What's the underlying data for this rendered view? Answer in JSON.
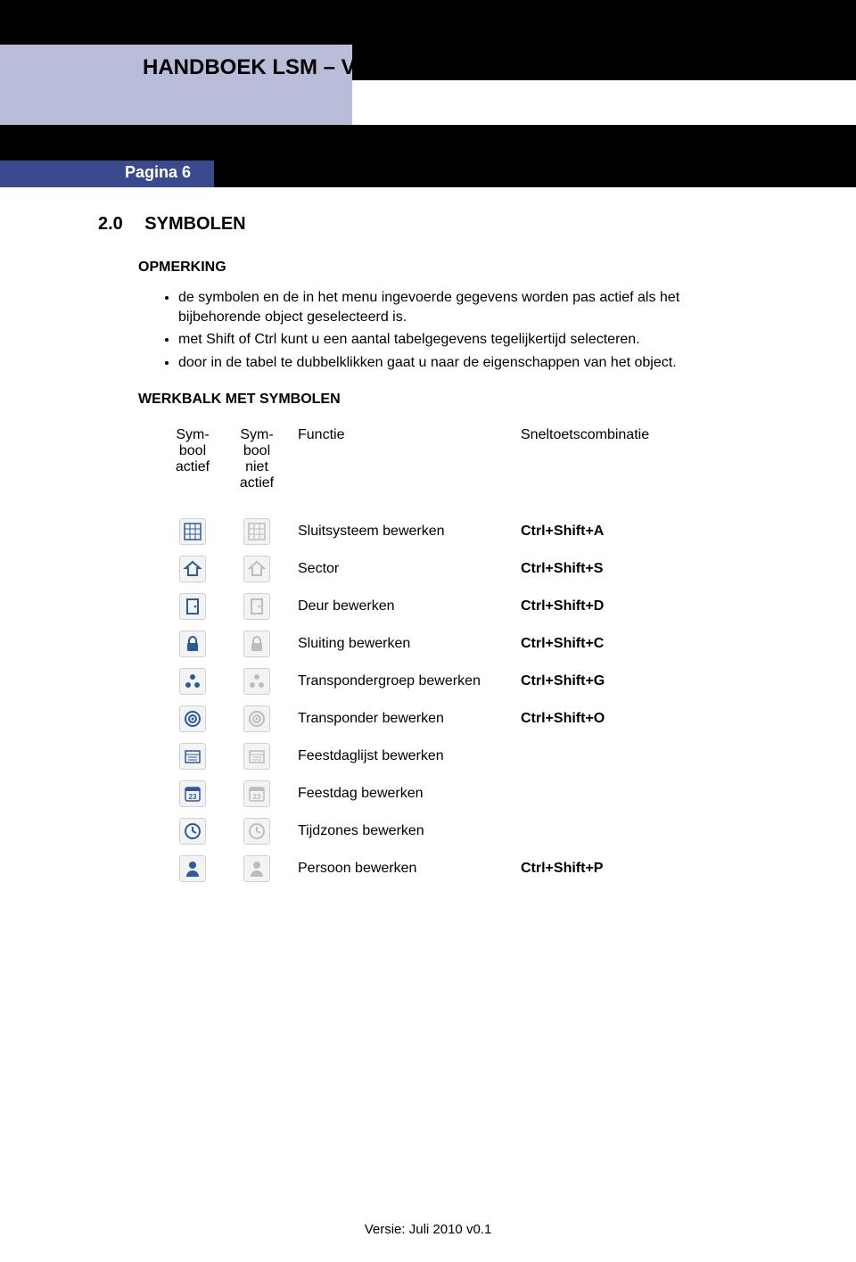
{
  "header": {
    "title": "HANDBOEK LSM – VN-SERVER",
    "page_label": "Pagina 6",
    "colors": {
      "header_blue": "#b8bed9",
      "tab_blue": "#3a4a8f",
      "black": "#000000"
    }
  },
  "section": {
    "number": "2.0",
    "title": "SYMBOLEN",
    "subhead1": "OPMERKING",
    "bullets": [
      "de symbolen en de in het menu ingevoerde gegevens worden pas actief als het bijbehorende object geselecteerd is.",
      "met Shift of Ctrl kunt u een aantal tabelgegevens tegelijkertijd selecteren.",
      "door in de tabel te dubbelklikken gaat u naar de eigenschappen van het object."
    ],
    "subhead2": "WERKBALK MET SYMBOLEN"
  },
  "table": {
    "headers": {
      "col1": "Symbool actief",
      "col2": "Symbool niet actief",
      "col3": "Functie",
      "col4": "Sneltoetscombinatie"
    },
    "icon_colors": {
      "active": "#2a5b9b",
      "inactive": "#bdbdbd",
      "box_bg": "#f3f3f3",
      "box_border": "#d0d0d0"
    },
    "rows": [
      {
        "icon": "grid",
        "fn": "Sluitsysteem bewerken",
        "key": "Ctrl+Shift+A"
      },
      {
        "icon": "house",
        "fn": "Sector",
        "key": "Ctrl+Shift+S"
      },
      {
        "icon": "door",
        "fn": "Deur bewerken",
        "key": "Ctrl+Shift+D"
      },
      {
        "icon": "lock",
        "fn": "Sluiting bewerken",
        "key": "Ctrl+Shift+C"
      },
      {
        "icon": "group3",
        "fn": "Transpondergroep bewerken",
        "key": "Ctrl+Shift+G"
      },
      {
        "icon": "target",
        "fn": "Transponder bewerken",
        "key": "Ctrl+Shift+O"
      },
      {
        "icon": "listcal",
        "fn": "Feestdaglijst bewerken",
        "key": ""
      },
      {
        "icon": "cal23",
        "fn": "Feestdag bewerken",
        "key": ""
      },
      {
        "icon": "clock",
        "fn": "Tijdzones bewerken",
        "key": ""
      },
      {
        "icon": "person",
        "fn": "Persoon bewerken",
        "key": "Ctrl+Shift+P"
      }
    ]
  },
  "footer": {
    "text": "Versie: Juli 2010 v0.1"
  }
}
